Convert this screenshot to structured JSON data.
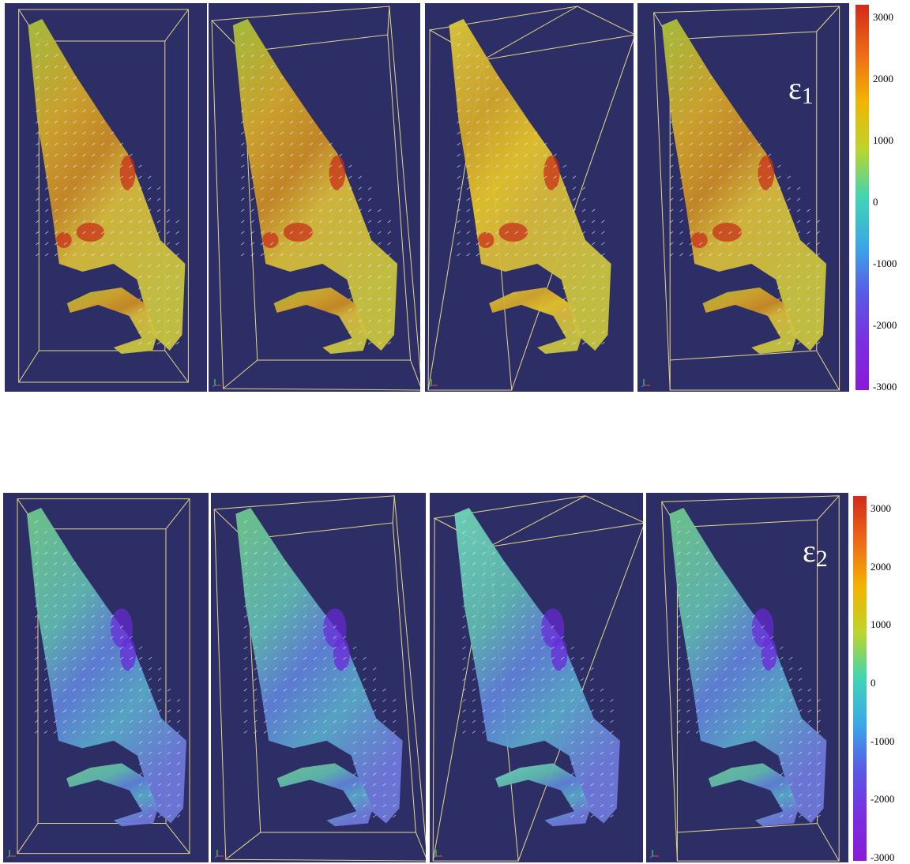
{
  "rows": [
    {
      "id": "row-epsilon-1",
      "label": {
        "symbol": "ε",
        "subscript": "1"
      },
      "colorbar_ticks": [
        "3000",
        "2000",
        "1000",
        "0",
        "-1000",
        "-2000",
        "-3000"
      ],
      "colorbar_colors": [
        "#d22a1a",
        "#ee6a18",
        "#f2b400",
        "#bcd52c",
        "#3fd5b4",
        "#3aa8e8",
        "#5a5ae6",
        "#7a2fe0",
        "#8a1ad8"
      ],
      "panel_count": 4,
      "surface_tone": "warm"
    },
    {
      "id": "row-epsilon-2",
      "label": {
        "symbol": "ε",
        "subscript": "2"
      },
      "colorbar_ticks": [
        "3000",
        "2000",
        "1000",
        "0",
        "-1000",
        "-2000",
        "-3000"
      ],
      "colorbar_colors": [
        "#d22a1a",
        "#ee6a18",
        "#f2b400",
        "#bcd52c",
        "#3fd5b4",
        "#3aa8e8",
        "#5a5ae6",
        "#7a2fe0",
        "#8a1ad8"
      ],
      "panel_count": 4,
      "surface_tone": "cool"
    }
  ],
  "colors": {
    "background": "#2e2e66",
    "bounding_box": "#e6d78a",
    "vector_glyph": "#e8f0ff"
  }
}
